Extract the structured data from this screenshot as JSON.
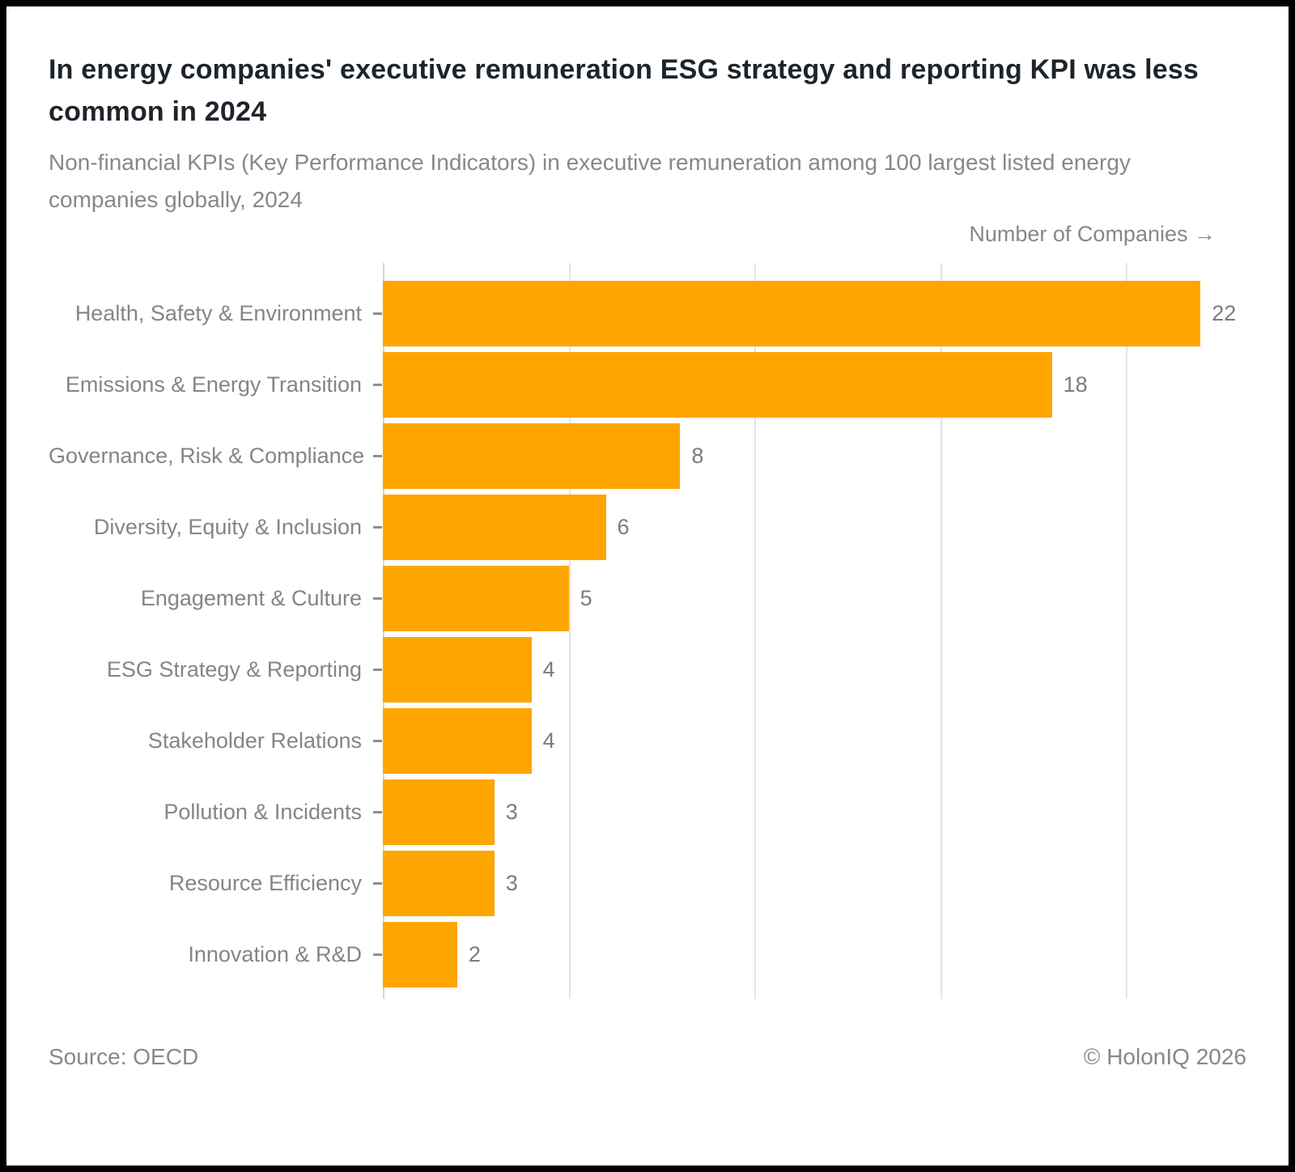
{
  "header": {
    "title": "In energy companies' executive remuneration ESG strategy and reporting KPI was less common in 2024",
    "subtitle": "Non-financial KPIs (Key Performance Indicators) in executive remuneration among 100 largest listed energy companies globally, 2024"
  },
  "chart_data": {
    "type": "bar",
    "orientation": "horizontal",
    "title": "In energy companies' executive remuneration ESG strategy and reporting KPI was less common in 2024",
    "subtitle": "Non-financial KPIs (Key Performance Indicators) in executive remuneration among 100 largest listed energy companies globally, 2024",
    "categories": [
      "Health, Safety & Environment",
      "Emissions & Energy Transition",
      "Governance, Risk & Compliance",
      "Diversity, Equity & Inclusion",
      "Engagement & Culture",
      "ESG Strategy & Reporting",
      "Stakeholder Relations",
      "Pollution & Incidents",
      "Resource Efficiency",
      "Innovation & R&D"
    ],
    "values": [
      22,
      18,
      8,
      6,
      5,
      4,
      4,
      3,
      3,
      2
    ],
    "xlabel": "Number of Companies →",
    "ylabel": "",
    "xlim": [
      0,
      22.8
    ],
    "gridline_step": 5,
    "grid": "vertical",
    "tick_labels_shown": false,
    "legend_position": "none",
    "bar_color": "#FFA500"
  },
  "footer": {
    "source": "Source: OECD",
    "copyright": "© HolonIQ 2026"
  },
  "colors": {
    "bar": "#FFA500",
    "title_text": "#1e242b",
    "muted_text": "#86888b",
    "gridline": "#e3e4e6",
    "axis_line": "#d4d5d7",
    "frame_border": "#000000",
    "background": "#ffffff"
  }
}
